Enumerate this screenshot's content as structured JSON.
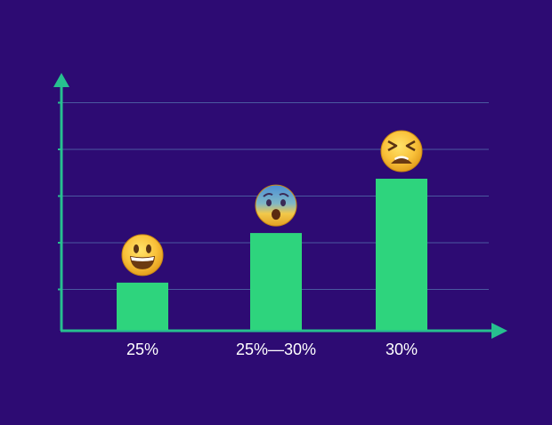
{
  "background_color": "#2d0b73",
  "chart_data": {
    "type": "bar",
    "title": "",
    "xlabel": "",
    "ylabel": "",
    "categories": [
      "25%",
      "25%—30%",
      "30%"
    ],
    "values": [
      1,
      2.05,
      3.2
    ],
    "ylim": [
      0,
      4.8
    ],
    "grid": true,
    "legend": "none",
    "icons": [
      "grinning-face-icon",
      "anxious-face-icon",
      "tired-face-icon"
    ],
    "colors": {
      "bar": "#2ed47d",
      "axis": "#27c08f",
      "grid": "#4a5aa0",
      "label": "#ffffff",
      "emoji_face": "#f6b92e"
    }
  }
}
